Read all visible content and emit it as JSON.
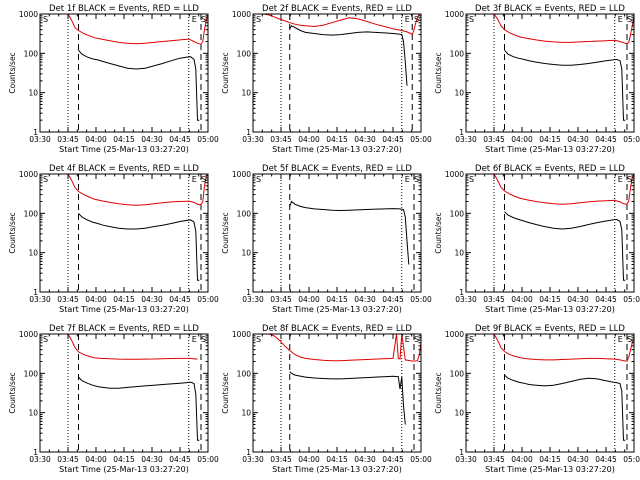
{
  "chart_data": {
    "type": "line",
    "y_scale": "log",
    "ylim": [
      1,
      1000
    ],
    "y_ticks": [
      "1",
      "10",
      "100",
      "1000"
    ],
    "x_ticks": [
      "03:30",
      "03:45",
      "04:00",
      "04:15",
      "04:30",
      "04:45",
      "05:00"
    ],
    "xlim_minutes": [
      0,
      96
    ],
    "xlabel": "Start Time (25-Mar-13 03:27:20)",
    "ylabel": "Counts/sec",
    "colors": {
      "events": "#000000",
      "lld": "#e00000"
    },
    "panels": [
      {
        "title": "Det 1f BLACK = Events, RED = LLD",
        "markers": [
          "S",
          "E",
          "S"
        ],
        "dotted": [
          16,
          85
        ],
        "dashed": [
          22,
          92
        ],
        "events": {
          "x": [
            22,
            24,
            27,
            30,
            33,
            36,
            40,
            45,
            50,
            55,
            60,
            65,
            70,
            75,
            80,
            84,
            86,
            88,
            89,
            90,
            91
          ],
          "y": [
            120,
            95,
            80,
            72,
            68,
            62,
            55,
            48,
            42,
            40,
            42,
            48,
            55,
            65,
            75,
            80,
            82,
            70,
            40,
            2,
            2
          ]
        },
        "lld": {
          "x": [
            16,
            18,
            20,
            22,
            25,
            28,
            31,
            35,
            40,
            45,
            50,
            55,
            60,
            65,
            70,
            75,
            80,
            85,
            88,
            90,
            92,
            93,
            94,
            95,
            96
          ],
          "y": [
            1000,
            700,
            450,
            380,
            320,
            280,
            250,
            230,
            210,
            190,
            180,
            175,
            180,
            190,
            200,
            210,
            220,
            230,
            200,
            180,
            170,
            200,
            400,
            700,
            1000
          ]
        }
      },
      {
        "title": "Det 2f BLACK = Events, RED = LLD",
        "markers": [
          "S",
          "E",
          "S"
        ],
        "dotted": [
          16,
          85
        ],
        "dashed": [
          21,
          91
        ],
        "events": {
          "x": [
            21,
            22,
            24,
            27,
            30,
            35,
            40,
            45,
            50,
            55,
            60,
            65,
            70,
            75,
            80,
            83,
            85,
            86,
            87,
            88
          ],
          "y": [
            420,
            500,
            450,
            380,
            340,
            320,
            300,
            290,
            300,
            320,
            340,
            350,
            340,
            330,
            320,
            310,
            300,
            200,
            60,
            15
          ]
        },
        "lld": {
          "x": [
            0,
            3,
            6,
            9,
            12,
            15,
            18,
            21,
            24,
            27,
            30,
            35,
            40,
            45,
            50,
            55,
            60,
            65,
            70,
            75,
            80,
            85,
            88,
            90,
            91,
            92,
            93,
            94,
            95,
            96
          ],
          "y": [
            1000,
            1000,
            1000,
            950,
            850,
            750,
            680,
            600,
            550,
            520,
            500,
            480,
            520,
            600,
            700,
            800,
            750,
            650,
            550,
            480,
            420,
            380,
            350,
            320,
            300,
            400,
            600,
            800,
            1000,
            1000
          ]
        }
      },
      {
        "title": "Det 3f BLACK = Events, RED = LLD",
        "markers": [
          "S",
          "E",
          "S"
        ],
        "dotted": [
          16,
          85
        ],
        "dashed": [
          22,
          92
        ],
        "events": {
          "x": [
            22,
            24,
            27,
            30,
            33,
            36,
            40,
            45,
            50,
            55,
            60,
            65,
            70,
            75,
            80,
            84,
            86,
            88,
            89,
            90,
            91
          ],
          "y": [
            120,
            95,
            82,
            75,
            70,
            65,
            60,
            55,
            52,
            50,
            50,
            52,
            55,
            60,
            65,
            68,
            70,
            65,
            40,
            2,
            2
          ]
        },
        "lld": {
          "x": [
            16,
            18,
            20,
            22,
            25,
            28,
            31,
            35,
            40,
            45,
            50,
            55,
            60,
            65,
            70,
            75,
            80,
            85,
            88,
            90,
            92,
            93,
            94,
            95,
            96
          ],
          "y": [
            1000,
            750,
            500,
            400,
            330,
            290,
            260,
            240,
            220,
            205,
            195,
            190,
            190,
            195,
            200,
            205,
            210,
            215,
            200,
            185,
            175,
            190,
            300,
            500,
            900
          ]
        }
      },
      {
        "title": "Det 4f BLACK = Events, RED = LLD",
        "markers": [
          "S",
          "E",
          "S"
        ],
        "dotted": [
          16,
          85
        ],
        "dashed": [
          22,
          92
        ],
        "events": {
          "x": [
            22,
            24,
            27,
            30,
            33,
            36,
            40,
            45,
            50,
            55,
            60,
            65,
            70,
            75,
            80,
            84,
            86,
            88,
            89,
            90,
            91
          ],
          "y": [
            100,
            80,
            68,
            60,
            55,
            50,
            46,
            42,
            40,
            40,
            42,
            46,
            50,
            55,
            62,
            66,
            68,
            60,
            35,
            2,
            2
          ]
        },
        "lld": {
          "x": [
            16,
            18,
            20,
            22,
            25,
            28,
            31,
            35,
            40,
            45,
            50,
            55,
            60,
            65,
            70,
            75,
            80,
            85,
            88,
            90,
            92,
            93,
            94,
            95,
            96
          ],
          "y": [
            1000,
            700,
            450,
            360,
            300,
            260,
            230,
            210,
            190,
            175,
            165,
            160,
            165,
            175,
            185,
            195,
            200,
            205,
            190,
            170,
            165,
            200,
            500,
            900,
            1000
          ]
        }
      },
      {
        "title": "Det 5f BLACK = Events, RED = LLD",
        "markers": [
          "S",
          "E",
          "S"
        ],
        "dotted": [
          16,
          85
        ],
        "dashed": [
          21,
          92
        ],
        "events": {
          "x": [
            21,
            22,
            24,
            27,
            30,
            35,
            40,
            45,
            50,
            55,
            60,
            65,
            70,
            75,
            80,
            84,
            86,
            87,
            88,
            89
          ],
          "y": [
            150,
            200,
            170,
            150,
            140,
            130,
            125,
            120,
            118,
            120,
            122,
            125,
            128,
            130,
            132,
            130,
            125,
            80,
            20,
            5
          ]
        },
        "lld": {
          "x": [],
          "y": []
        }
      },
      {
        "title": "Det 6f BLACK = Events, RED = LLD",
        "markers": [
          "S",
          "E",
          "S"
        ],
        "dotted": [
          16,
          85
        ],
        "dashed": [
          22,
          92
        ],
        "events": {
          "x": [
            22,
            24,
            27,
            30,
            33,
            36,
            40,
            45,
            50,
            55,
            60,
            65,
            70,
            75,
            80,
            84,
            86,
            88,
            89,
            90,
            91
          ],
          "y": [
            110,
            90,
            78,
            70,
            64,
            58,
            52,
            46,
            42,
            40,
            42,
            46,
            52,
            58,
            64,
            68,
            70,
            62,
            38,
            2,
            2
          ]
        },
        "lld": {
          "x": [
            16,
            18,
            20,
            22,
            25,
            28,
            31,
            35,
            40,
            45,
            50,
            55,
            60,
            65,
            70,
            75,
            80,
            85,
            88,
            90,
            92,
            93,
            94,
            95,
            96
          ],
          "y": [
            1000,
            700,
            460,
            370,
            310,
            270,
            240,
            220,
            200,
            185,
            175,
            170,
            175,
            185,
            195,
            205,
            210,
            215,
            195,
            175,
            170,
            210,
            450,
            800,
            1000
          ]
        }
      },
      {
        "title": "Det 7f BLACK = Events, RED = LLD",
        "markers": [
          "S",
          "E",
          "S"
        ],
        "dotted": [
          16,
          85
        ],
        "dashed": [
          22,
          92
        ],
        "events": {
          "x": [
            22,
            24,
            27,
            30,
            33,
            36,
            40,
            45,
            50,
            55,
            60,
            65,
            70,
            75,
            80,
            84,
            86,
            88,
            89,
            90,
            91
          ],
          "y": [
            80,
            65,
            56,
            50,
            46,
            44,
            42,
            42,
            44,
            46,
            48,
            50,
            52,
            54,
            56,
            58,
            60,
            55,
            30,
            2,
            2
          ]
        },
        "lld": {
          "x": [
            16,
            18,
            20,
            22,
            25,
            28,
            31,
            35,
            40,
            45,
            50,
            55,
            60,
            65,
            70,
            75,
            80,
            85,
            88,
            90
          ],
          "y": [
            1000,
            700,
            450,
            350,
            300,
            270,
            250,
            240,
            235,
            230,
            228,
            228,
            230,
            232,
            235,
            238,
            240,
            240,
            235,
            230
          ]
        }
      },
      {
        "title": "Det 8f BLACK = Events, RED = LLD",
        "markers": [
          "S",
          "E",
          "S"
        ],
        "dotted": [
          16,
          85
        ],
        "dashed": [
          21,
          92
        ],
        "events": {
          "x": [
            21,
            22,
            24,
            27,
            30,
            35,
            40,
            45,
            50,
            55,
            60,
            65,
            70,
            75,
            80,
            83,
            84,
            85,
            86,
            87
          ],
          "y": [
            110,
            100,
            90,
            85,
            80,
            76,
            74,
            72,
            72,
            74,
            76,
            78,
            80,
            82,
            84,
            82,
            40,
            80,
            15,
            5
          ]
        },
        "lld": {
          "x": [
            0,
            3,
            6,
            9,
            12,
            15,
            18,
            21,
            24,
            27,
            30,
            35,
            40,
            45,
            50,
            55,
            60,
            65,
            70,
            75,
            80,
            82,
            83,
            84,
            85,
            87,
            90,
            92,
            94,
            95,
            96
          ],
          "y": [
            1000,
            1000,
            1000,
            1000,
            900,
            700,
            500,
            380,
            300,
            260,
            240,
            225,
            215,
            210,
            210,
            215,
            220,
            225,
            230,
            235,
            240,
            1000,
            240,
            230,
            1000,
            220,
            210,
            205,
            210,
            300,
            600
          ]
        }
      },
      {
        "title": "Det 9f BLACK = Events, RED = LLD",
        "markers": [
          "S",
          "E",
          "S"
        ],
        "dotted": [
          16,
          85
        ],
        "dashed": [
          22,
          92
        ],
        "events": {
          "x": [
            22,
            24,
            27,
            30,
            33,
            36,
            40,
            45,
            50,
            55,
            60,
            65,
            70,
            75,
            80,
            84,
            86,
            88,
            89,
            90,
            91
          ],
          "y": [
            90,
            75,
            66,
            60,
            56,
            52,
            50,
            48,
            50,
            55,
            62,
            70,
            75,
            72,
            65,
            60,
            58,
            55,
            35,
            2,
            2
          ]
        },
        "lld": {
          "x": [
            16,
            18,
            20,
            22,
            25,
            28,
            31,
            35,
            40,
            45,
            50,
            55,
            60,
            65,
            70,
            75,
            80,
            85,
            88,
            90,
            92,
            93,
            94,
            95,
            96
          ],
          "y": [
            1000,
            700,
            450,
            360,
            300,
            270,
            250,
            235,
            225,
            220,
            220,
            225,
            230,
            235,
            240,
            240,
            235,
            230,
            220,
            210,
            205,
            260,
            400,
            600,
            800
          ]
        }
      }
    ]
  }
}
